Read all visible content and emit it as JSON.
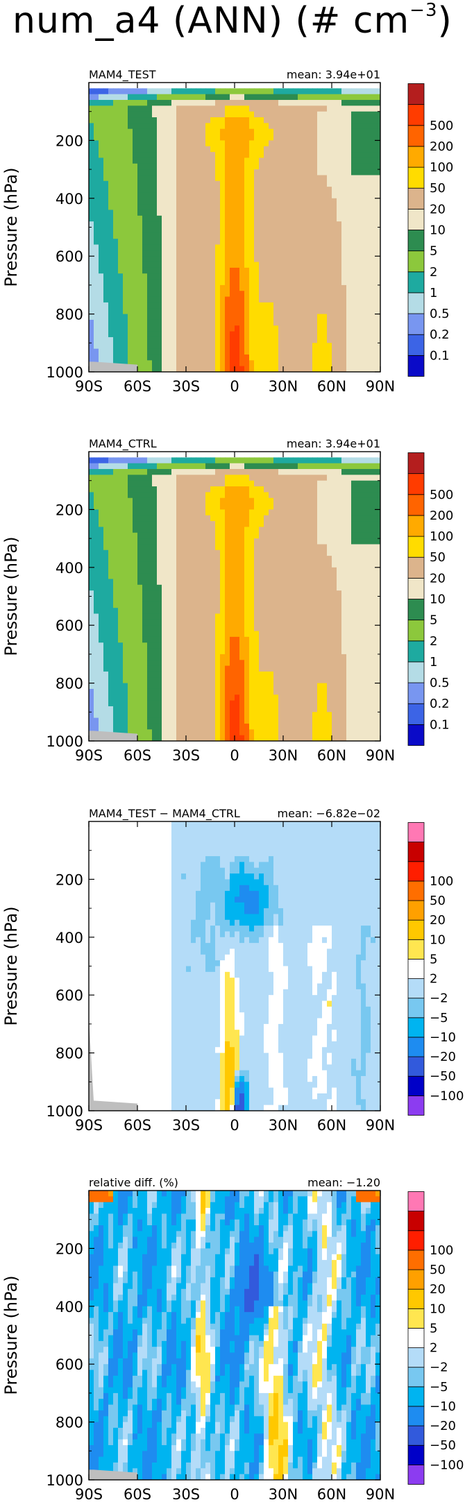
{
  "figure": {
    "title_main": "num_a4 (ANN) (# cm",
    "title_exp": "−3",
    "title_close": ")"
  },
  "chart_data": [
    {
      "type": "heatmap",
      "title": "MAM4_TEST",
      "mean_label": "mean: 3.94e+01",
      "ylabel": "Pressure (hPa)",
      "xticks": [
        "90S",
        "60S",
        "30S",
        "0",
        "30N",
        "60N",
        "90N"
      ],
      "yticks": [
        "200",
        "400",
        "600",
        "800",
        "1000"
      ],
      "ylim": [
        1000,
        0
      ],
      "xlim": [
        -90,
        90
      ],
      "levels": [
        "0.1",
        "0.2",
        "0.5",
        "1",
        "2",
        "5",
        "10",
        "20",
        "50",
        "100",
        "200",
        "500"
      ],
      "colors": [
        "#0a0ac8",
        "#3c64e6",
        "#7896f0",
        "#b4dce6",
        "#1eaaa0",
        "#8cc83c",
        "#2d8c50",
        "#f0e6c8",
        "#dcb48c",
        "#ffdc00",
        "#ffaa00",
        "#ff6400",
        "#ff3c00",
        "#b41e1e"
      ]
    },
    {
      "type": "heatmap",
      "title": "MAM4_CTRL",
      "mean_label": "mean: 3.94e+01",
      "ylabel": "Pressure (hPa)",
      "xticks": [
        "90S",
        "60S",
        "30S",
        "0",
        "30N",
        "60N",
        "90N"
      ],
      "yticks": [
        "200",
        "400",
        "600",
        "800",
        "1000"
      ],
      "ylim": [
        1000,
        0
      ],
      "xlim": [
        -90,
        90
      ],
      "levels": [
        "0.1",
        "0.2",
        "0.5",
        "1",
        "2",
        "5",
        "10",
        "20",
        "50",
        "100",
        "200",
        "500"
      ],
      "colors": [
        "#0a0ac8",
        "#3c64e6",
        "#7896f0",
        "#b4dce6",
        "#1eaaa0",
        "#8cc83c",
        "#2d8c50",
        "#f0e6c8",
        "#dcb48c",
        "#ffdc00",
        "#ffaa00",
        "#ff6400",
        "#ff3c00",
        "#b41e1e"
      ]
    },
    {
      "type": "heatmap",
      "title": "MAM4_TEST − MAM4_CTRL",
      "mean_label": "mean: −6.82e−02",
      "ylabel": "Pressure (hPa)",
      "xticks": [
        "90S",
        "60S",
        "30S",
        "0",
        "30N",
        "60N",
        "90N"
      ],
      "yticks": [
        "200",
        "400",
        "600",
        "800",
        "1000"
      ],
      "ylim": [
        1000,
        0
      ],
      "xlim": [
        -90,
        90
      ],
      "levels": [
        "−100",
        "−50",
        "−20",
        "−10",
        "−5",
        "−2",
        "2",
        "5",
        "10",
        "20",
        "50",
        "100"
      ],
      "colors": [
        "#8c3cf0",
        "#0000c8",
        "#325adc",
        "#1e8cf0",
        "#00b4f0",
        "#78c8f0",
        "#b4dcf8",
        "#ffffff",
        "#ffe650",
        "#ffc800",
        "#ffa000",
        "#ff6e00",
        "#ff1e00",
        "#c80000",
        "#ff78b4"
      ]
    },
    {
      "type": "heatmap",
      "title": "relative diff. (%)",
      "mean_label": "mean: −1.20",
      "ylabel": "Pressure (hPa)",
      "xticks": [
        "90S",
        "60S",
        "30S",
        "0",
        "30N",
        "60N",
        "90N"
      ],
      "yticks": [
        "200",
        "400",
        "600",
        "800",
        "1000"
      ],
      "ylim": [
        1000,
        0
      ],
      "xlim": [
        -90,
        90
      ],
      "levels": [
        "−100",
        "−50",
        "−20",
        "−10",
        "−5",
        "−2",
        "2",
        "5",
        "10",
        "20",
        "50",
        "100"
      ],
      "colors": [
        "#8c3cf0",
        "#0000c8",
        "#325adc",
        "#1e8cf0",
        "#00b4f0",
        "#78c8f0",
        "#b4dcf8",
        "#ffffff",
        "#ffe650",
        "#ffc800",
        "#ffa000",
        "#ff6e00",
        "#ff1e00",
        "#c80000",
        "#ff78b4"
      ]
    }
  ]
}
